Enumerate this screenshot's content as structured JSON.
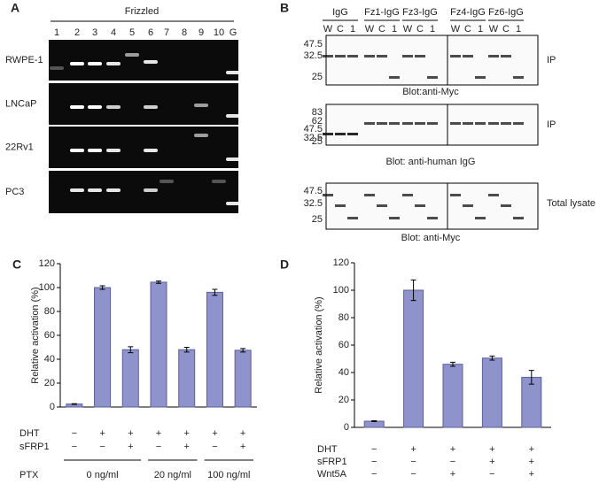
{
  "panel_a": {
    "label": "A",
    "title": "Frizzled",
    "lanes": [
      "1",
      "2",
      "3",
      "4",
      "5",
      "6",
      "7",
      "8",
      "9",
      "10",
      "G"
    ],
    "cell_lines": [
      "RWPE-1",
      "LNCaP",
      "22Rv1",
      "PC3"
    ]
  },
  "panel_b": {
    "label": "B",
    "groups": [
      "IgG",
      "Fz1-IgG",
      "Fz3-IgG",
      "Fz4-IgG",
      "Fz6-IgG"
    ],
    "lanes": [
      "W",
      "C",
      "1"
    ],
    "blots": [
      {
        "markers": [
          "47.5",
          "32.5",
          "25"
        ],
        "side": "IP",
        "caption": "Blot:anti-Myc"
      },
      {
        "markers": [
          "83",
          "62",
          "47.5",
          "32.5",
          "25"
        ],
        "side": "IP",
        "caption": "Blot: anti-human IgG"
      },
      {
        "markers": [
          "47.5",
          "32.5",
          "25"
        ],
        "side": "Total lysate",
        "caption": "Blot: anti-Myc"
      }
    ]
  },
  "chart_data": [
    {
      "panel": "C",
      "type": "bar",
      "ylabel": "Relative activation (%)",
      "values": [
        2.5,
        100,
        48,
        104.5,
        48,
        96,
        47.5
      ],
      "errors": [
        0.3,
        1.5,
        2.5,
        1,
        2,
        2.5,
        1.5
      ],
      "color": "#8f93cc",
      "ylim": [
        0,
        120
      ],
      "yticks": [
        0,
        20,
        40,
        60,
        80,
        100,
        120
      ],
      "conditions": [
        {
          "label": "DHT",
          "signs": [
            "−",
            "+",
            "+",
            "+",
            "+",
            "+",
            "+"
          ]
        },
        {
          "label": "sFRP1",
          "signs": [
            "−",
            "−",
            "+",
            "−",
            "+",
            "−",
            "+"
          ]
        }
      ],
      "group_title": "PTX",
      "groups": [
        "0 ng/ml",
        "20 ng/ml",
        "100 ng/ml"
      ]
    },
    {
      "panel": "D",
      "type": "bar",
      "ylabel": "Relative activation (%)",
      "values": [
        4.5,
        100,
        46,
        50.5,
        36.5
      ],
      "errors": [
        0.3,
        7.5,
        1.5,
        1.5,
        5
      ],
      "color": "#8f93cc",
      "ylim": [
        0,
        120
      ],
      "yticks": [
        0,
        20,
        40,
        60,
        80,
        100,
        120
      ],
      "conditions": [
        {
          "label": "DHT",
          "signs": [
            "−",
            "+",
            "+",
            "+",
            "+"
          ]
        },
        {
          "label": "sFRP1",
          "signs": [
            "−",
            "−",
            "−",
            "+",
            "+"
          ]
        },
        {
          "label": "Wnt5A",
          "signs": [
            "−",
            "−",
            "+",
            "−",
            "+"
          ]
        }
      ]
    }
  ]
}
